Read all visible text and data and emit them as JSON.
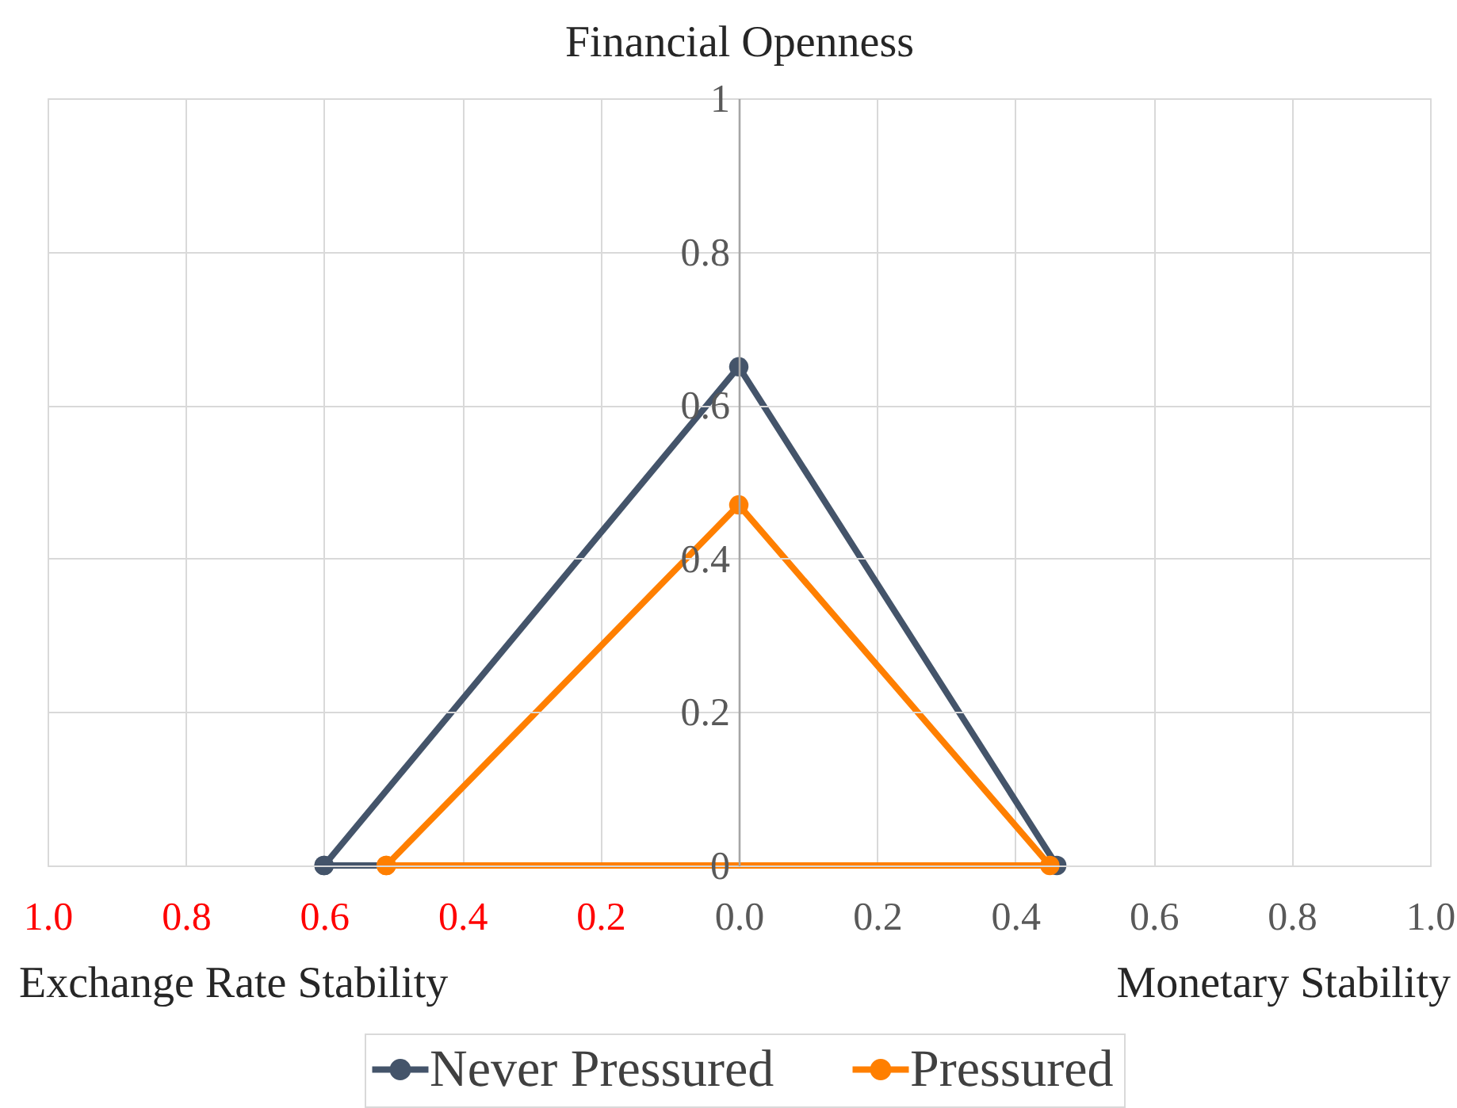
{
  "chart_data": {
    "type": "line",
    "ylabel": "Financial Openness",
    "annotations": [
      "Exchange Rate Stability",
      "Monetary Stability"
    ],
    "series": [
      {
        "name": "Never Pressured",
        "color": "#44546a",
        "x": [
          -0.6,
          0,
          0.46,
          -0.6
        ],
        "values": [
          0,
          0.65,
          0,
          0
        ]
      },
      {
        "name": "Pressured",
        "color": "#ff7f00",
        "x": [
          -0.51,
          0,
          0.45,
          -0.51
        ],
        "values": [
          0,
          0.47,
          0,
          0
        ]
      }
    ],
    "xlim": [
      -1,
      1
    ],
    "xticks": [
      {
        "value": -1,
        "label": "1.0"
      },
      {
        "value": -0.8,
        "label": "0.8"
      },
      {
        "value": -0.6,
        "label": "0.6"
      },
      {
        "value": -0.4,
        "label": "0.4"
      },
      {
        "value": -0.2,
        "label": "0.2"
      },
      {
        "value": 0,
        "label": "0.0"
      },
      0.2,
      0.4,
      0.6,
      0.8,
      {
        "value": 1,
        "label": "1.0"
      }
    ],
    "ylim": [
      0,
      1
    ],
    "yticks": [
      0,
      0.2,
      0.4,
      0.6,
      0.8,
      1
    ],
    "grid": true,
    "legend": "bottom",
    "marker": "circle",
    "line_style": "solid"
  }
}
